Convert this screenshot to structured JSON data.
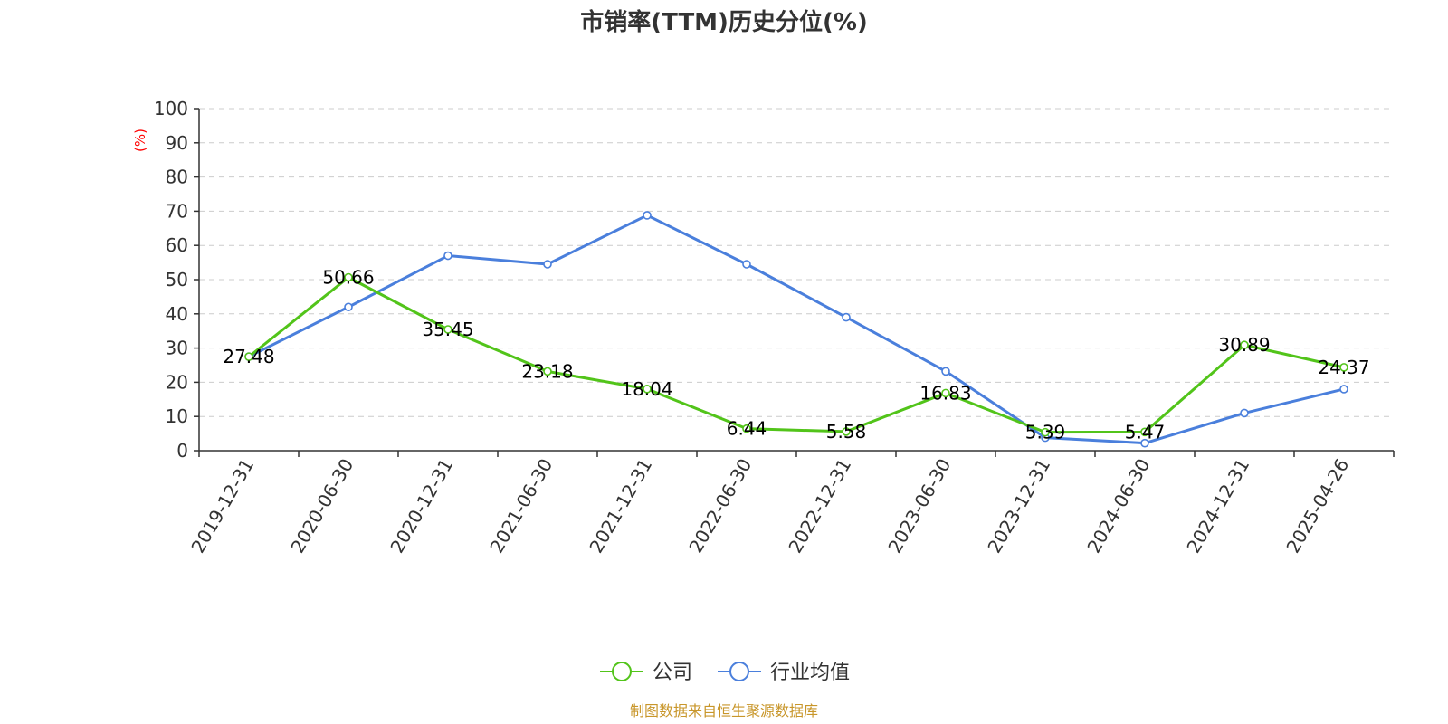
{
  "chart_data": {
    "type": "line",
    "title": "市销率(TTM)历史分位(%)",
    "ylabel": "(%)",
    "xlabel": "",
    "ylim": [
      0,
      100
    ],
    "yticks": [
      0,
      10,
      20,
      30,
      40,
      50,
      60,
      70,
      80,
      90,
      100
    ],
    "grid": true,
    "legend_position": "bottom-center",
    "categories": [
      "2019-12-31",
      "2020-06-30",
      "2020-12-31",
      "2021-06-30",
      "2021-12-31",
      "2022-06-30",
      "2022-12-31",
      "2023-06-30",
      "2023-12-31",
      "2024-06-30",
      "2024-12-31",
      "2025-04-26"
    ],
    "series": [
      {
        "name": "公司",
        "color": "#52c41a",
        "values": [
          27.48,
          50.66,
          35.45,
          23.18,
          18.04,
          6.44,
          5.58,
          16.83,
          5.39,
          5.47,
          30.89,
          24.37
        ],
        "labels": [
          "27.48",
          "50.66",
          "35.45",
          "23.18",
          "18.04",
          "6.44",
          "5.58",
          "16.83",
          "5.39",
          "5.47",
          "30.89",
          "24.37"
        ]
      },
      {
        "name": "行业均值",
        "color": "#4a7fdc",
        "values": [
          27.5,
          42.0,
          57.0,
          54.5,
          68.8,
          54.5,
          39.0,
          23.2,
          3.8,
          2.2,
          11.0,
          18.0
        ]
      }
    ],
    "source": "制图数据来自恒生聚源数据库"
  }
}
